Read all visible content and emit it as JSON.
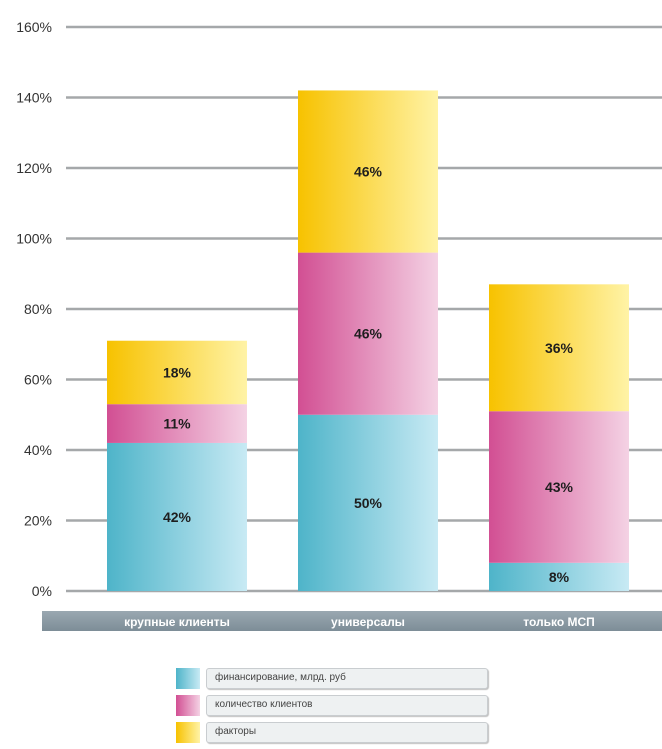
{
  "chart_data": {
    "type": "bar",
    "stacked": true,
    "categories": [
      "крупные клиенты",
      "универсалы",
      "только МСП"
    ],
    "series": [
      {
        "name": "финансирование, млрд. руб",
        "values": [
          42,
          50,
          8
        ],
        "color": "#6cc3d5"
      },
      {
        "name": "количество клиентов",
        "values": [
          11,
          46,
          43
        ],
        "color": "#d9609e"
      },
      {
        "name": "факторы",
        "values": [
          18,
          46,
          36
        ],
        "color": "#fcc900"
      }
    ],
    "data_labels": [
      [
        "42%",
        "50%",
        "8%"
      ],
      [
        "11%",
        "46%",
        "43%"
      ],
      [
        "18%",
        "46%",
        "36%"
      ]
    ],
    "y_ticks": [
      "0%",
      "20%",
      "40%",
      "60%",
      "80%",
      "100%",
      "120%",
      "140%",
      "160%"
    ],
    "ylim": [
      0,
      160
    ],
    "grid": true,
    "legend_position": "bottom"
  }
}
